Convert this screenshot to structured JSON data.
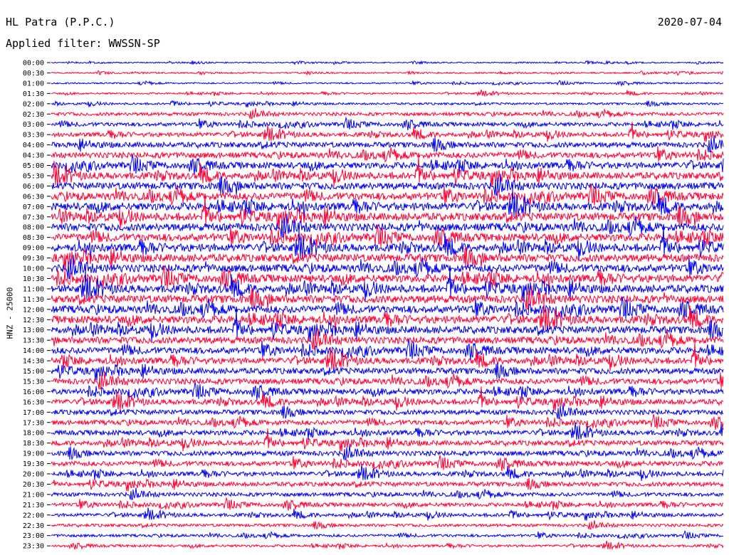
{
  "header": {
    "station": "HL Patra (P.P.C.)",
    "date": "2020-07-04",
    "filter": "Applied filter: WWSSN-SP",
    "channel": "HNZ - 25000"
  },
  "chart_data": {
    "type": "line",
    "title": "HL Patra (P.P.C.)",
    "xlabel": "",
    "ylabel": "HNZ - 25000",
    "row_interval_minutes": 30,
    "series_colors": [
      "#0000ee",
      "#ff0033"
    ],
    "grid": false,
    "rows": [
      "00:00",
      "00:30",
      "01:00",
      "01:30",
      "02:00",
      "02:30",
      "03:00",
      "03:30",
      "04:00",
      "04:30",
      "05:00",
      "05:30",
      "06:00",
      "06:30",
      "07:00",
      "07:30",
      "08:00",
      "08:30",
      "09:00",
      "09:30",
      "10:00",
      "10:30",
      "11:00",
      "11:30",
      "12:00",
      "12:30",
      "13:00",
      "13:30",
      "14:00",
      "14:30",
      "15:00",
      "15:30",
      "16:00",
      "16:30",
      "17:00",
      "17:30",
      "18:00",
      "18:30",
      "19:00",
      "19:30",
      "20:00",
      "20:30",
      "21:00",
      "21:30",
      "22:00",
      "22:30",
      "23:00",
      "23:30"
    ],
    "relative_amplitude": [
      0.12,
      0.14,
      0.16,
      0.18,
      0.22,
      0.35,
      0.4,
      0.45,
      0.55,
      0.6,
      0.65,
      0.7,
      0.72,
      0.75,
      0.78,
      0.8,
      0.8,
      0.78,
      0.8,
      0.8,
      0.8,
      0.8,
      0.8,
      0.8,
      0.78,
      0.78,
      0.75,
      0.7,
      0.68,
      0.65,
      0.62,
      0.6,
      0.58,
      0.55,
      0.5,
      0.5,
      0.5,
      0.52,
      0.5,
      0.5,
      0.45,
      0.45,
      0.4,
      0.4,
      0.35,
      0.3,
      0.28,
      0.25
    ]
  }
}
